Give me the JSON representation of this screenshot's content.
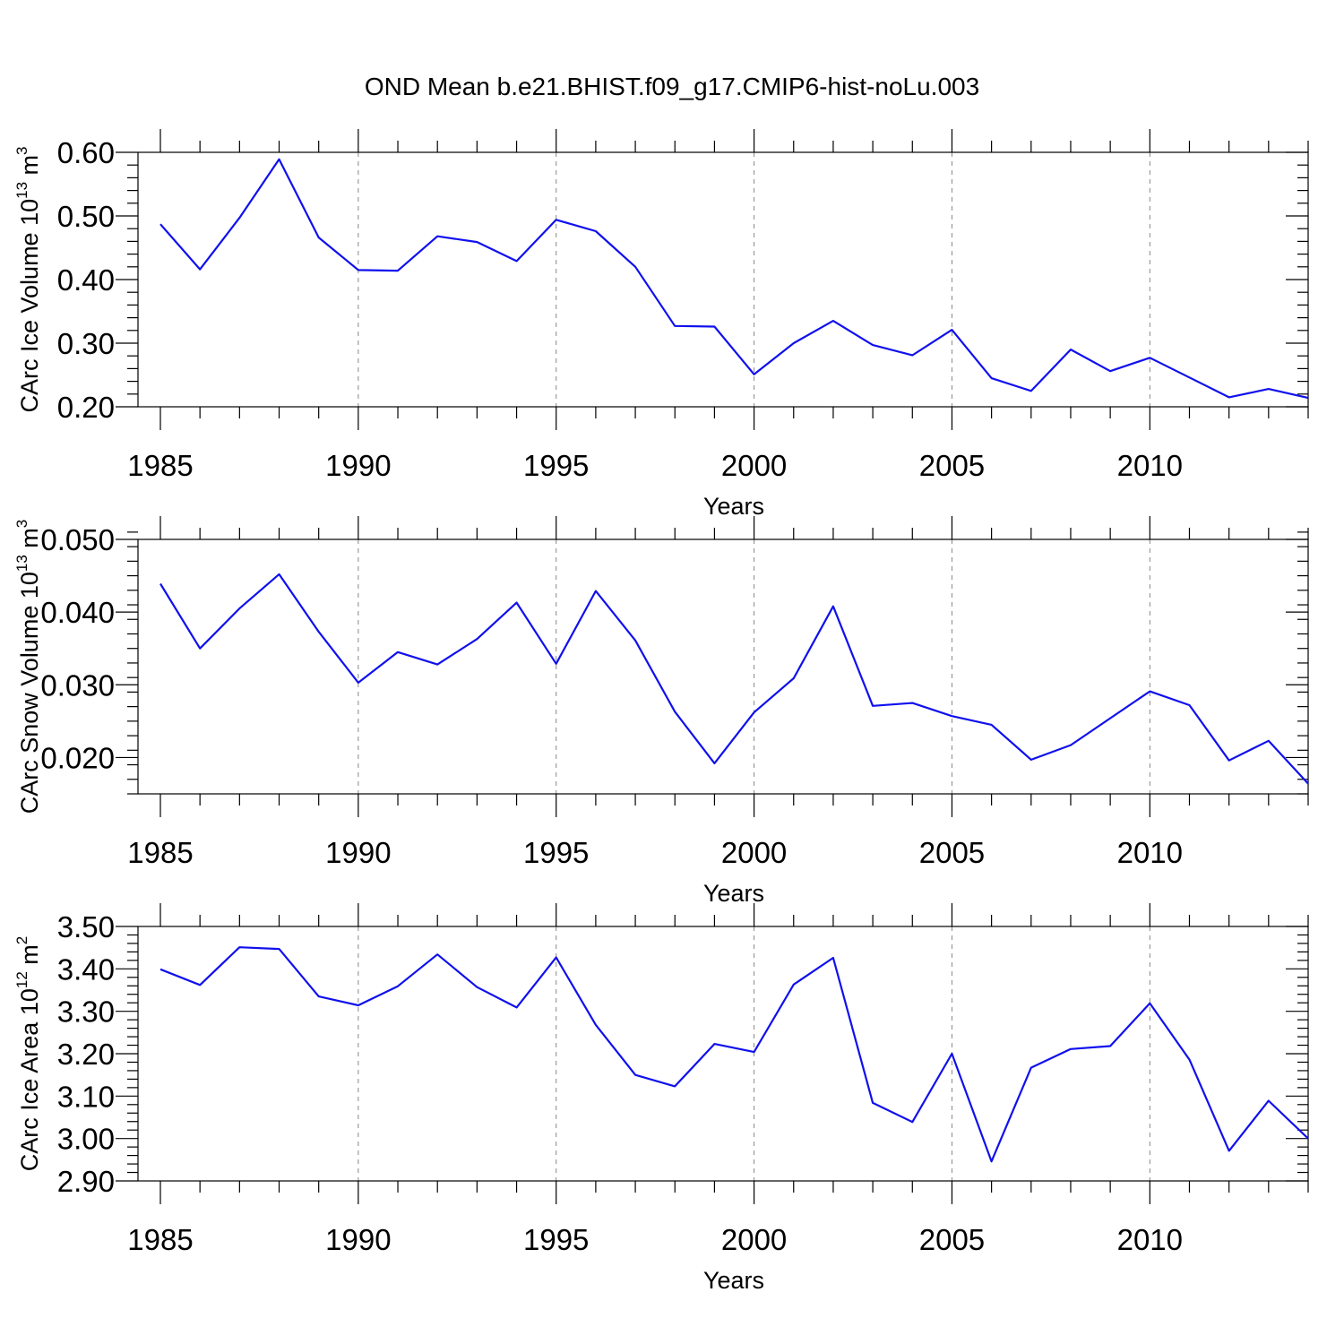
{
  "title": "OND Mean b.e21.BHIST.f09_g17.CMIP6-hist-noLu.003",
  "chart_data": [
    {
      "type": "line",
      "title": "OND Mean b.e21.BHIST.f09_g17.CMIP6-hist-noLu.003",
      "xlabel": "Years",
      "ylabel": "CArc Ice Volume 10",
      "ylabel_exp": "13",
      "ylabel_unit": " m",
      "ylabel_unit_exp": "3",
      "xlim": [
        1985,
        2014
      ],
      "ylim": [
        0.2,
        0.6
      ],
      "x_ticks": [
        1985,
        1990,
        1995,
        2000,
        2005,
        2010
      ],
      "x_tick_labels": [
        "1985",
        "1990",
        "1995",
        "2000",
        "2005",
        "2010"
      ],
      "y_ticks": [
        0.2,
        0.3,
        0.4,
        0.5,
        0.6
      ],
      "y_tick_labels": [
        "0.20",
        "0.30",
        "0.40",
        "0.50",
        "0.60"
      ],
      "y_minor_step": 0.02,
      "x": [
        1985,
        1986,
        1987,
        1988,
        1989,
        1990,
        1991,
        1992,
        1993,
        1994,
        1995,
        1996,
        1997,
        1998,
        1999,
        2000,
        2001,
        2002,
        2003,
        2004,
        2005,
        2006,
        2007,
        2008,
        2009,
        2010,
        2011,
        2012,
        2013,
        2014
      ],
      "values": [
        0.487,
        0.416,
        0.497,
        0.589,
        0.466,
        0.415,
        0.414,
        0.468,
        0.459,
        0.429,
        0.494,
        0.476,
        0.42,
        0.327,
        0.326,
        0.251,
        0.3,
        0.335,
        0.297,
        0.281,
        0.321,
        0.245,
        0.225,
        0.29,
        0.256,
        0.277,
        0.246,
        0.215,
        0.228,
        0.214
      ],
      "series_color": "#1010ee",
      "grid": "vertical dashed at major x ticks"
    },
    {
      "type": "line",
      "xlabel": "Years",
      "ylabel": "CArc Snow Volume 10",
      "ylabel_exp": "13",
      "ylabel_unit": " m",
      "ylabel_unit_exp": "3",
      "xlim": [
        1985,
        2014
      ],
      "ylim": [
        0.015,
        0.05
      ],
      "x_ticks": [
        1985,
        1990,
        1995,
        2000,
        2005,
        2010
      ],
      "x_tick_labels": [
        "1985",
        "1990",
        "1995",
        "2000",
        "2005",
        "2010"
      ],
      "y_ticks": [
        0.02,
        0.03,
        0.04,
        0.05
      ],
      "y_tick_labels": [
        "0.020",
        "0.030",
        "0.040",
        "0.050"
      ],
      "y_minor_step": 0.002,
      "x": [
        1985,
        1986,
        1987,
        1988,
        1989,
        1990,
        1991,
        1992,
        1993,
        1994,
        1995,
        1996,
        1997,
        1998,
        1999,
        2000,
        2001,
        2002,
        2003,
        2004,
        2005,
        2006,
        2007,
        2008,
        2009,
        2010,
        2011,
        2012,
        2013,
        2014
      ],
      "values": [
        0.0439,
        0.035,
        0.0405,
        0.0452,
        0.0373,
        0.0303,
        0.0345,
        0.0328,
        0.0363,
        0.0413,
        0.0329,
        0.0429,
        0.0361,
        0.0263,
        0.0192,
        0.0262,
        0.0309,
        0.0408,
        0.0271,
        0.0275,
        0.0257,
        0.0245,
        0.0197,
        0.0217,
        0.0254,
        0.0291,
        0.0272,
        0.0196,
        0.0223,
        0.0164
      ],
      "series_color": "#1010ee",
      "grid": "vertical dashed at major x ticks"
    },
    {
      "type": "line",
      "xlabel": "Years",
      "ylabel": "CArc Ice Area 10",
      "ylabel_exp": "12",
      "ylabel_unit": " m",
      "ylabel_unit_exp": "2",
      "xlim": [
        1985,
        2014
      ],
      "ylim": [
        2.9,
        3.5
      ],
      "x_ticks": [
        1985,
        1990,
        1995,
        2000,
        2005,
        2010
      ],
      "x_tick_labels": [
        "1985",
        "1990",
        "1995",
        "2000",
        "2005",
        "2010"
      ],
      "y_ticks": [
        2.9,
        3.0,
        3.1,
        3.2,
        3.3,
        3.4,
        3.5
      ],
      "y_tick_labels": [
        "2.90",
        "3.00",
        "3.10",
        "3.20",
        "3.30",
        "3.40",
        "3.50"
      ],
      "y_minor_step": 0.02,
      "x": [
        1985,
        1986,
        1987,
        1988,
        1989,
        1990,
        1991,
        1992,
        1993,
        1994,
        1995,
        1996,
        1997,
        1998,
        1999,
        2000,
        2001,
        2002,
        2003,
        2004,
        2005,
        2006,
        2007,
        2008,
        2009,
        2010,
        2011,
        2012,
        2013,
        2014
      ],
      "values": [
        3.399,
        3.362,
        3.451,
        3.447,
        3.335,
        3.314,
        3.359,
        3.434,
        3.357,
        3.309,
        3.427,
        3.268,
        3.15,
        3.123,
        3.223,
        3.204,
        3.363,
        3.426,
        3.084,
        3.039,
        3.2,
        2.946,
        3.167,
        3.211,
        3.218,
        3.319,
        3.186,
        2.971,
        3.089,
        3.0
      ],
      "series_color": "#1010ee",
      "grid": "vertical dashed at major x ticks"
    }
  ]
}
